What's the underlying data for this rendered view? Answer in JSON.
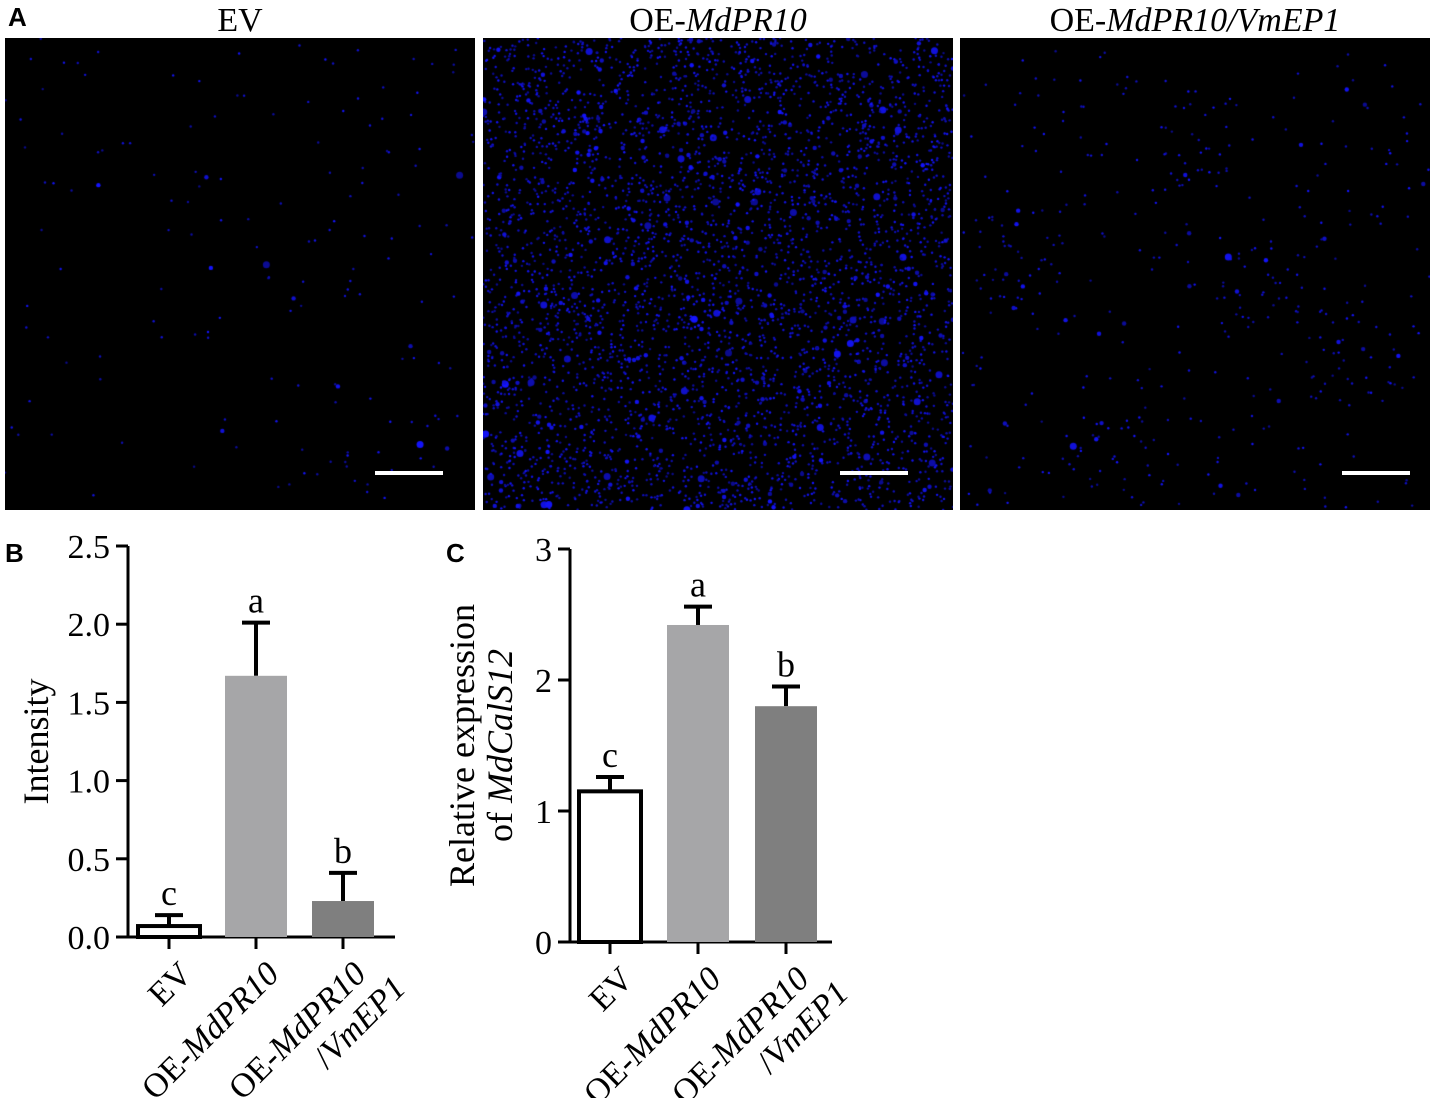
{
  "panels": {
    "a": {
      "letter": "A"
    },
    "b": {
      "letter": "B"
    },
    "c": {
      "letter": "C"
    }
  },
  "micrographs": [
    {
      "title_prefix": "EV",
      "title_italic": "",
      "signal_level": "low"
    },
    {
      "title_prefix": "OE-",
      "title_italic": "MdPR10",
      "signal_level": "high"
    },
    {
      "title_prefix": "OE-",
      "title_italic": "MdPR10/VmEP1",
      "signal_level": "medium"
    }
  ],
  "colors": {
    "fluorescence": "#1a1aff",
    "bar_ev": "#ffffff",
    "bar_oe": "#a6a6a8",
    "bar_oe_vmep1": "#7f7f7f"
  },
  "chart_data": [
    {
      "type": "bar",
      "panel": "B",
      "ylabel": "Intensity",
      "ylabel_italic": "",
      "ylim": [
        0,
        2.5
      ],
      "yticks": [
        "0.0",
        "0.5",
        "1.0",
        "1.5",
        "2.0",
        "2.5"
      ],
      "categories": [
        {
          "line1": "EV",
          "line1_italic": "",
          "line2": "",
          "line2_italic": ""
        },
        {
          "line1": "OE-",
          "line1_italic": "MdPR10",
          "line2": "",
          "line2_italic": ""
        },
        {
          "line1": "OE-",
          "line1_italic": "MdPR10",
          "line2": "/",
          "line2_italic": "VmEP1"
        }
      ],
      "values": [
        0.07,
        1.67,
        0.23
      ],
      "errors": [
        0.07,
        0.34,
        0.18
      ],
      "letters": [
        "c",
        "a",
        "b"
      ]
    },
    {
      "type": "bar",
      "panel": "C",
      "ylabel": "Relative expression",
      "ylabel_prefix2": "of ",
      "ylabel_italic": "MdCalS12",
      "ylim": [
        0,
        3
      ],
      "yticks": [
        "0",
        "1",
        "2",
        "3"
      ],
      "categories": [
        {
          "line1": "EV",
          "line1_italic": "",
          "line2": "",
          "line2_italic": ""
        },
        {
          "line1": "OE-",
          "line1_italic": "MdPR10",
          "line2": "",
          "line2_italic": ""
        },
        {
          "line1": "OE-",
          "line1_italic": "MdPR10",
          "line2": "/",
          "line2_italic": "VmEP1"
        }
      ],
      "values": [
        1.15,
        2.42,
        1.8
      ],
      "errors": [
        0.11,
        0.14,
        0.15
      ],
      "letters": [
        "c",
        "a",
        "b"
      ]
    }
  ]
}
